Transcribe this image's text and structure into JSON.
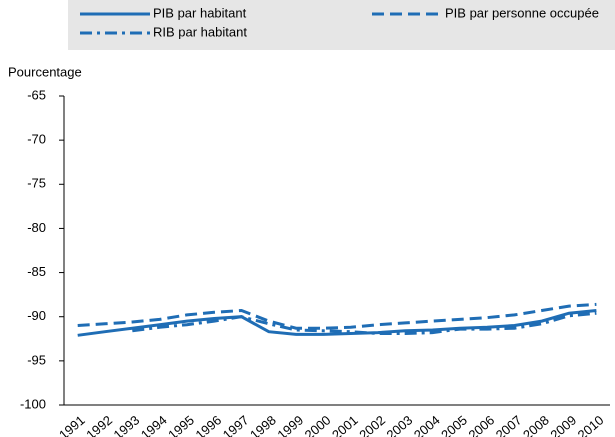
{
  "chart_data": {
    "type": "line",
    "y_label": "Pourcentage",
    "categories": [
      "1991",
      "1992",
      "1993",
      "1994",
      "1995",
      "1996",
      "1997",
      "1998",
      "1999",
      "2000",
      "2001",
      "2002",
      "2003",
      "2004",
      "2005",
      "2006",
      "2007",
      "2008",
      "2009",
      "2010"
    ],
    "series": [
      {
        "name": "PIB par habitant",
        "color": "#1f6db5",
        "dash": "solid",
        "values": [
          -92.1,
          -91.7,
          -91.3,
          -90.9,
          -90.5,
          -90.2,
          -90.0,
          -91.7,
          -92.0,
          -92.0,
          -91.9,
          -91.8,
          -91.6,
          -91.5,
          -91.3,
          -91.2,
          -91.0,
          -90.5,
          -89.6,
          -89.3
        ]
      },
      {
        "name": "PIB par personne occupée",
        "color": "#1f6db5",
        "dash": "dashed",
        "values": [
          -91.0,
          -90.8,
          -90.6,
          -90.3,
          -89.8,
          -89.5,
          -89.3,
          -90.5,
          -91.3,
          -91.3,
          -91.2,
          -90.9,
          -90.7,
          -90.5,
          -90.3,
          -90.1,
          -89.8,
          -89.3,
          -88.8,
          -88.6
        ]
      },
      {
        "name": "RIB par habitant",
        "color": "#1f6db5",
        "dash": "dashdot",
        "values": [
          null,
          null,
          -91.6,
          -91.2,
          -90.9,
          -90.5,
          -90.0,
          -90.8,
          -91.5,
          -91.6,
          -91.7,
          -91.9,
          -91.9,
          -91.8,
          -91.4,
          -91.4,
          -91.3,
          -90.8,
          -89.9,
          -89.6
        ]
      }
    ],
    "ylim": [
      -100,
      -65
    ],
    "yticks": [
      -65,
      -70,
      -75,
      -80,
      -85,
      -90,
      -95,
      -100
    ]
  }
}
